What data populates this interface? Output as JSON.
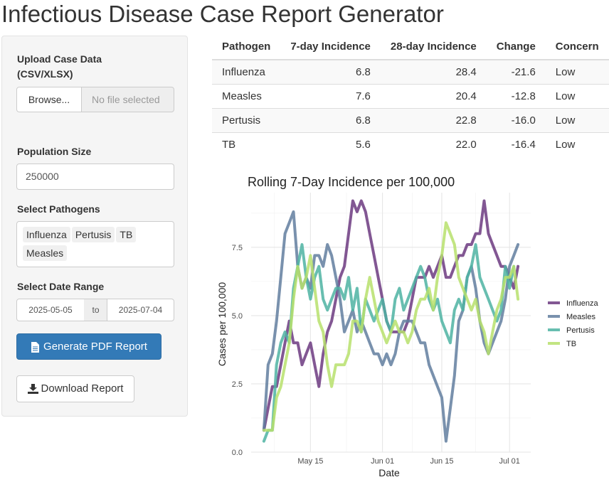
{
  "app": {
    "title": "Infectious Disease Case Report Generator"
  },
  "sidebar": {
    "upload_label": "Upload Case Data (CSV/XLSX)",
    "browse_label": "Browse...",
    "file_placeholder": "No file selected",
    "population_label": "Population Size",
    "population_value": "250000",
    "pathogens_label": "Select Pathogens",
    "pathogens_selected": [
      "Influenza",
      "Pertusis",
      "TB",
      "Measles"
    ],
    "date_range_label": "Select Date Range",
    "date_start": "2025-05-05",
    "date_sep": "to",
    "date_end": "2025-07-04",
    "generate_label": "Generate PDF Report",
    "download_label": "Download Report"
  },
  "table": {
    "headers": [
      "Pathogen",
      "7-day Incidence",
      "28-day Incidence",
      "Change",
      "Concern"
    ],
    "rows": [
      [
        "Influenza",
        "6.8",
        "28.4",
        "-21.6",
        "Low"
      ],
      [
        "Measles",
        "7.6",
        "20.4",
        "-12.8",
        "Low"
      ],
      [
        "Pertusis",
        "6.8",
        "22.8",
        "-16.0",
        "Low"
      ],
      [
        "TB",
        "5.6",
        "22.0",
        "-16.4",
        "Low"
      ]
    ]
  },
  "colors": {
    "primary": "#337ab7",
    "influenza": "#6c3a80",
    "measles": "#617e9f",
    "pertusis": "#4db3a2",
    "tb": "#b7e16c"
  },
  "chart_data": {
    "type": "line",
    "title": "Rolling 7-Day Incidence per 100,000",
    "xlabel": "Date",
    "ylabel": "Cases per 100,000",
    "ylim": [
      0,
      9.5
    ],
    "yticks": [
      0,
      2.5,
      5,
      7.5
    ],
    "ytick_labels": [
      "0.0",
      "2.5",
      "5.0",
      "7.5"
    ],
    "xlim": [
      "2025-05-01",
      "2025-07-06"
    ],
    "xticks": [
      "2025-05-15",
      "2025-06-01",
      "2025-06-15",
      "2025-07-01"
    ],
    "xtick_labels": [
      "May 15",
      "Jun 01",
      "Jun 15",
      "Jul 01"
    ],
    "grid": true,
    "legend_position": "right",
    "start_date": "2025-05-04",
    "series": [
      {
        "name": "Influenza",
        "color": "#6c3a80",
        "values": [
          0.8,
          1.6,
          2.4,
          2.4,
          3.2,
          4,
          4.8,
          4,
          4,
          3.2,
          3.6,
          4,
          3.2,
          2.4,
          3.6,
          4.4,
          4.8,
          5.6,
          6.4,
          6.8,
          8,
          9.2,
          8.8,
          9.2,
          8.8,
          8,
          7.2,
          6.4,
          5.6,
          4.8,
          4.4,
          4.4,
          4.4,
          4.4,
          4.8,
          5.6,
          6.4,
          6.4,
          6.4,
          6.8,
          6.4,
          6.8,
          7.2,
          6.4,
          6.4,
          6.8,
          7.2,
          7.2,
          7.6,
          7.6,
          8,
          8,
          9.2,
          8,
          7.6,
          7.2,
          6.8,
          6.8,
          6.4,
          6,
          6.8
        ]
      },
      {
        "name": "Measles",
        "color": "#617e9f",
        "values": [
          0.8,
          3.2,
          3.6,
          4.8,
          6.4,
          8,
          8.4,
          8.8,
          6.8,
          6,
          6.4,
          6,
          7.2,
          7.2,
          6.8,
          7.6,
          7.2,
          6.4,
          5.6,
          4.4,
          4.8,
          5.2,
          4.4,
          4.8,
          4.4,
          4,
          3.6,
          3.6,
          3.2,
          3.6,
          3.2,
          3.6,
          4.4,
          4.8,
          4.8,
          4.8,
          4.4,
          4,
          4,
          3.2,
          2.8,
          2.4,
          2,
          0.4,
          1.6,
          2.8,
          4.8,
          5.2,
          6.4,
          6.8,
          6,
          4.8,
          4,
          3.6,
          4,
          4.4,
          4.8,
          5.6,
          6.8,
          7.2,
          7.6
        ]
      },
      {
        "name": "Pertusis",
        "color": "#4db3a2",
        "values": [
          0.4,
          0.8,
          0.8,
          3.2,
          4,
          4.4,
          4,
          6,
          6.8,
          7.6,
          6.4,
          5.6,
          6.4,
          6.8,
          5.6,
          5.2,
          5.6,
          6,
          6,
          5.6,
          6.4,
          5.2,
          6,
          4.4,
          5.6,
          5.2,
          4.8,
          5.2,
          5.6,
          4.8,
          4.4,
          5.6,
          6,
          5.2,
          5.6,
          6,
          6.4,
          6.8,
          6.4,
          5.6,
          5.2,
          5.6,
          4.8,
          4.4,
          4,
          5.2,
          5.6,
          5.2,
          6.4,
          6.8,
          7.6,
          6.4,
          6,
          5.6,
          5.2,
          4.8,
          5.2,
          6.8,
          6,
          6.8
        ]
      },
      {
        "name": "TB",
        "color": "#b7e16c",
        "values": [
          0.8,
          0.8,
          0.8,
          2,
          2.4,
          3.2,
          4,
          5.6,
          6.8,
          6,
          6.4,
          7.2,
          6,
          4.8,
          4.4,
          3.2,
          2.4,
          3.2,
          3.2,
          3.2,
          3.6,
          4.8,
          4.8,
          4.4,
          5.6,
          6.4,
          5.6,
          4.8,
          4.4,
          4,
          4.4,
          4.8,
          4.4,
          4.4,
          4,
          4.4,
          5.2,
          5.6,
          5.6,
          6,
          5.2,
          6.4,
          7.2,
          8.4,
          8,
          7.6,
          6.4,
          6,
          5.6,
          5.2,
          5.6,
          4.8,
          4.4,
          3.6,
          4.4,
          5.2,
          5.6,
          6.4,
          6.4,
          6.8,
          5.6
        ]
      }
    ]
  }
}
